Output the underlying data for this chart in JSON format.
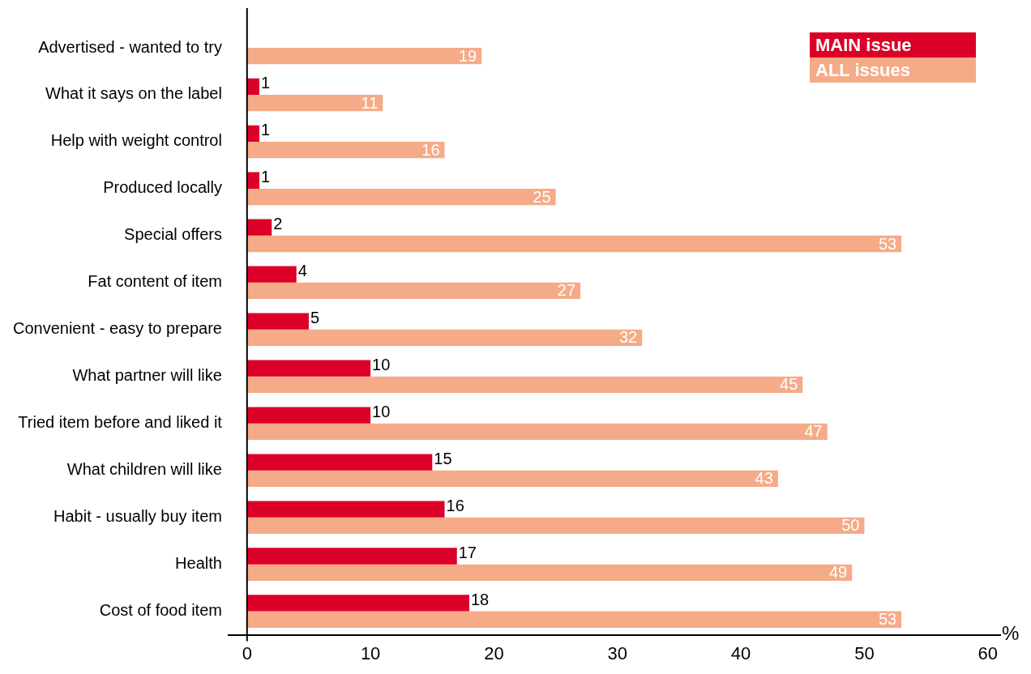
{
  "chart_data": {
    "type": "bar",
    "orientation": "horizontal",
    "xlabel": "%",
    "categories": [
      "Advertised - wanted to try",
      "What it says on the label",
      "Help with weight control",
      "Produced locally",
      "Special offers",
      "Fat content of item",
      "Convenient - easy to prepare",
      "What partner will like",
      "Tried item before and liked it",
      "What children will like",
      "Habit - usually buy item",
      "Health",
      "Cost of food item"
    ],
    "series": [
      {
        "name": "MAIN issue",
        "color": "#dc0028",
        "values": [
          null,
          1,
          1,
          1,
          2,
          4,
          5,
          10,
          10,
          15,
          16,
          17,
          18
        ]
      },
      {
        "name": "ALL issues",
        "color": "#f5ab88",
        "values": [
          19,
          11,
          16,
          25,
          53,
          27,
          32,
          45,
          47,
          43,
          50,
          49,
          53
        ]
      }
    ],
    "xlim": [
      -1.5,
      61
    ],
    "xticks": [
      0,
      10,
      20,
      30,
      40,
      50,
      60
    ],
    "data_labels": true,
    "legend": "top right",
    "grid": false
  }
}
